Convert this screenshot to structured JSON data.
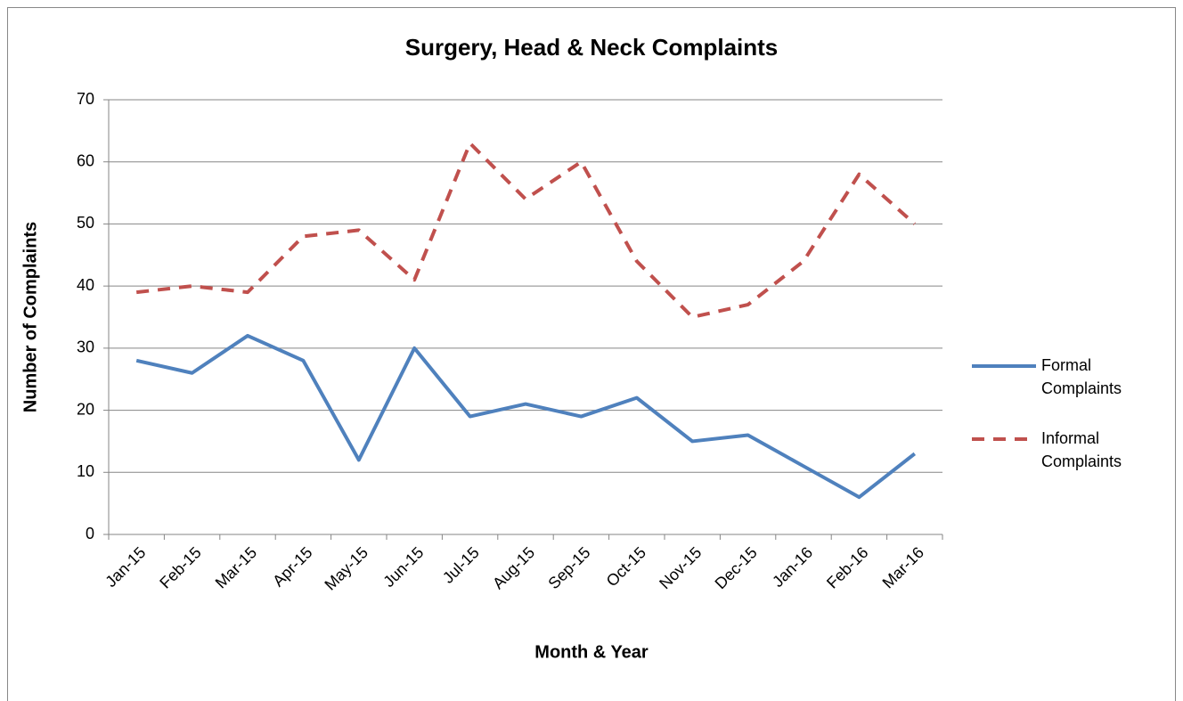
{
  "chart_data": {
    "type": "line",
    "title": "Surgery, Head & Neck Complaints",
    "x_label": "Month & Year",
    "y_label": "Number of Complaints",
    "categories": [
      "Jan-15",
      "Feb-15",
      "Mar-15",
      "Apr-15",
      "May-15",
      "Jun-15",
      "Jul-15",
      "Aug-15",
      "Sep-15",
      "Oct-15",
      "Nov-15",
      "Dec-15",
      "Jan-16",
      "Feb-16",
      "Mar-16"
    ],
    "series": [
      {
        "name": "Formal Complaints",
        "color": "#4f81bd",
        "dash": false,
        "values": [
          28,
          26,
          32,
          28,
          12,
          30,
          19,
          21,
          19,
          22,
          15,
          16,
          11,
          6,
          13
        ]
      },
      {
        "name": "Informal Complaints",
        "color": "#c0504d",
        "dash": true,
        "values": [
          39,
          40,
          39,
          48,
          49,
          41,
          63,
          54,
          60,
          44,
          35,
          37,
          44,
          58,
          50
        ]
      }
    ],
    "ylim": [
      0,
      70
    ],
    "yticks": [
      0,
      10,
      20,
      30,
      40,
      50,
      60,
      70
    ],
    "grid": true,
    "legend": "right"
  }
}
